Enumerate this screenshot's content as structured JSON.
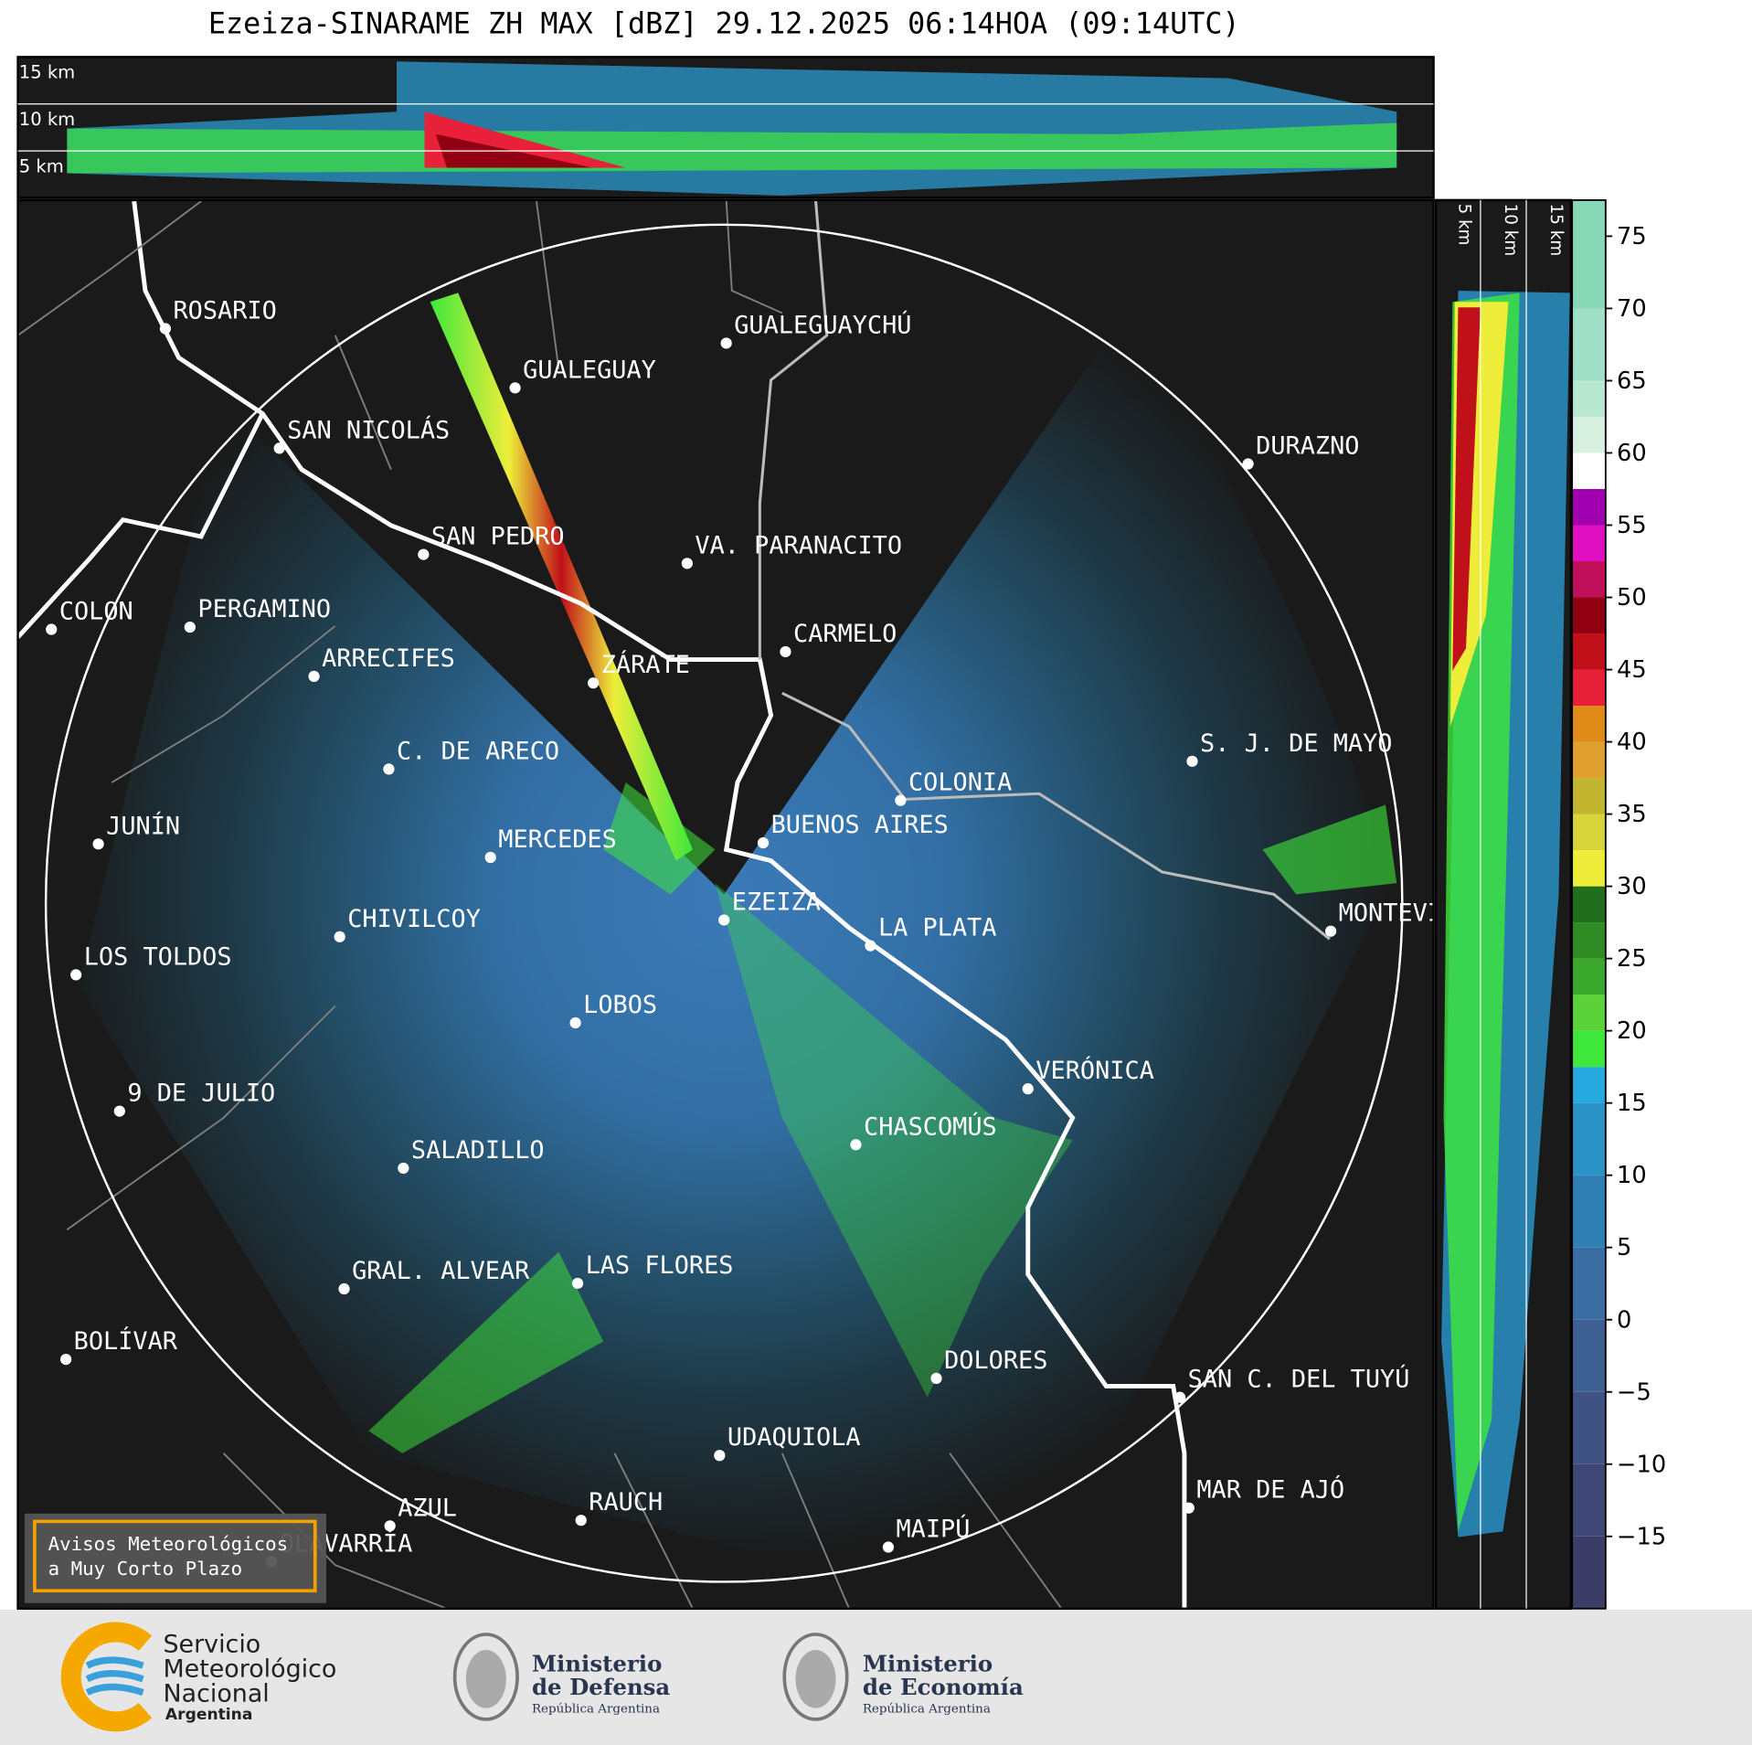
{
  "title": "Ezeiza-SINARAME ZH MAX [dBZ] 29.12.2025 06:14HOA (09:14UTC)",
  "top_panel": {
    "height_labels": [
      "15 km",
      "10 km",
      "5 km"
    ]
  },
  "side_panel": {
    "height_labels": [
      "5 km",
      "10 km",
      "15 km"
    ]
  },
  "map": {
    "cities": [
      "ROSARIO",
      "GUALEGUAYCHÚ",
      "GUALEGUAY",
      "SAN NICOLÁS",
      "DURAZNO",
      "SAN PEDRO",
      "VA. PARANACITO",
      "COLON",
      "PERGAMINO",
      "CARMELO",
      "ARRECIFES",
      "ZÁRATE",
      "S. J. DE MAYO",
      "C. DE ARECO",
      "COLONIA",
      "BUENOS AIRES",
      "JUNÍN",
      "MERCEDES",
      "EZEIZA",
      "CHIVILCOY",
      "MONTEVIDEO",
      "LA PLATA",
      "LOS TOLDOS",
      "LOBOS",
      "VERÓNICA",
      "9 DE JULIO",
      "CHASCOMÚS",
      "SALADILLO",
      "GRAL. ALVEAR",
      "LAS FLORES",
      "BOLÍVAR",
      "DOLORES",
      "SAN C. DEL TUYÚ",
      "UDAQUIOLA",
      "MAR DE AJÓ",
      "RAUCH",
      "AZUL",
      "OLAVARRÍA",
      "MAIPÚ"
    ],
    "alert_button": [
      "Avisos Meteorológicos",
      "a Muy Corto Plazo"
    ]
  },
  "colorbar": {
    "ylim": [
      -20,
      77.5
    ],
    "levels": [
      -20,
      -15,
      -10,
      -5,
      0,
      5,
      10,
      15,
      17.5,
      20,
      22.5,
      25,
      27.5,
      30,
      32.5,
      35,
      37.5,
      40,
      42.5,
      45,
      47.5,
      50,
      52.5,
      55,
      57.5,
      60,
      62.5,
      65,
      70,
      77.5
    ],
    "colors": [
      "#3b3d66",
      "#3d4674",
      "#3e5283",
      "#3e5f92",
      "#3a6da2",
      "#3080b5",
      "#2a92c5",
      "#25a9de",
      "#3ee83a",
      "#5bd23a",
      "#3aa82c",
      "#2f8c24",
      "#216e1d",
      "#eeee3a",
      "#d6d43a",
      "#c2b530",
      "#e0a030",
      "#e08a1a",
      "#e8203a",
      "#c0101a",
      "#900010",
      "#c0105a",
      "#e010c0",
      "#a000b0",
      "#ffffff",
      "#d8f0e0",
      "#b8e8d0",
      "#a0e0c8",
      "#88d8b8"
    ],
    "yticks": [
      75,
      70,
      65,
      60,
      55,
      50,
      45,
      40,
      35,
      30,
      25,
      20,
      15,
      10,
      5,
      0,
      {
        "value": -5,
        "label": "−5"
      },
      {
        "value": -10,
        "label": "−10"
      },
      {
        "value": -15,
        "label": "−15"
      }
    ]
  },
  "footer": {
    "smn": [
      "Servicio",
      "Meteorológico",
      "Nacional",
      "Argentina"
    ],
    "defensa": [
      "Ministerio",
      "de Defensa",
      "República Argentina"
    ],
    "economia": [
      "Ministerio",
      "de Economía",
      "República Argentina"
    ]
  }
}
